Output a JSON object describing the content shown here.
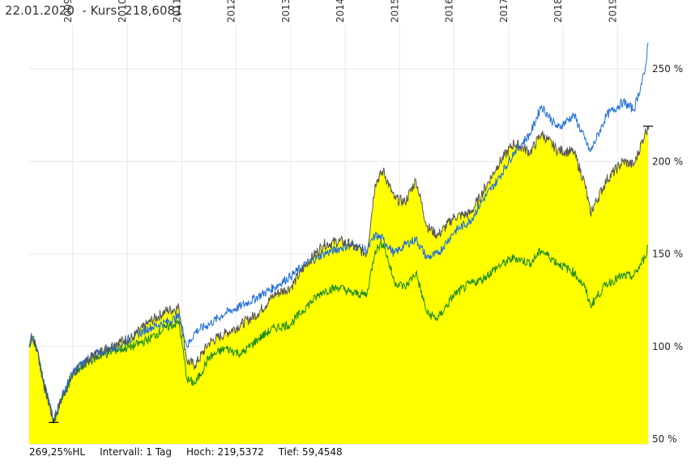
{
  "header": {
    "date": "22.01.2020",
    "kurs_label": "Kurs:",
    "kurs_value": "218,6081"
  },
  "footer": {
    "perf": "269,25%HL",
    "intervall": "Intervall: 1 Tag",
    "hoch": "Hoch: 219,5372",
    "tief": "Tief: 59,4548"
  },
  "colors": {
    "area": "#ffff00",
    "main_line": "#555555",
    "blue": "#1e6fd9",
    "green": "#1a8a1a",
    "grid": "#e8e8e8"
  },
  "chart_data": {
    "type": "line",
    "x_ticks": [
      "2009",
      "2010",
      "2011",
      "2012",
      "2013",
      "2014",
      "2015",
      "2016",
      "2017",
      "2018",
      "2019"
    ],
    "y_ticks": [
      "50 %",
      "100 %",
      "150 %",
      "200 %",
      "250 %"
    ],
    "ylim": [
      50,
      275
    ],
    "xlim": [
      2008.7,
      2020.06
    ],
    "grid": true,
    "series": [
      {
        "name": "",
        "role": "main-area",
        "points": [
          [
            2008.7,
            100
          ],
          [
            2008.75,
            106
          ],
          [
            2008.85,
            98
          ],
          [
            2008.95,
            82
          ],
          [
            2009.15,
            59
          ],
          [
            2009.3,
            72
          ],
          [
            2009.5,
            85
          ],
          [
            2009.75,
            92
          ],
          [
            2010.0,
            97
          ],
          [
            2010.3,
            102
          ],
          [
            2010.6,
            105
          ],
          [
            2010.9,
            113
          ],
          [
            2011.2,
            119
          ],
          [
            2011.45,
            121
          ],
          [
            2011.6,
            92
          ],
          [
            2011.75,
            90
          ],
          [
            2012.0,
            102
          ],
          [
            2012.3,
            107
          ],
          [
            2012.6,
            112
          ],
          [
            2012.9,
            118
          ],
          [
            2013.2,
            128
          ],
          [
            2013.5,
            132
          ],
          [
            2013.8,
            145
          ],
          [
            2014.1,
            155
          ],
          [
            2014.4,
            157
          ],
          [
            2014.6,
            155
          ],
          [
            2014.9,
            150
          ],
          [
            2015.05,
            188
          ],
          [
            2015.2,
            195
          ],
          [
            2015.4,
            180
          ],
          [
            2015.6,
            178
          ],
          [
            2015.8,
            190
          ],
          [
            2016.0,
            165
          ],
          [
            2016.2,
            160
          ],
          [
            2016.5,
            170
          ],
          [
            2016.8,
            172
          ],
          [
            2017.0,
            182
          ],
          [
            2017.3,
            198
          ],
          [
            2017.6,
            210
          ],
          [
            2017.9,
            205
          ],
          [
            2018.1,
            215
          ],
          [
            2018.4,
            206
          ],
          [
            2018.7,
            205
          ],
          [
            2018.9,
            188
          ],
          [
            2019.0,
            172
          ],
          [
            2019.3,
            190
          ],
          [
            2019.6,
            200
          ],
          [
            2019.8,
            198
          ],
          [
            2020.0,
            215
          ],
          [
            2020.06,
            219
          ]
        ]
      },
      {
        "name": "",
        "role": "blue-line",
        "points": [
          [
            2008.7,
            100
          ],
          [
            2008.75,
            106
          ],
          [
            2008.85,
            98
          ],
          [
            2008.95,
            82
          ],
          [
            2009.15,
            61
          ],
          [
            2009.3,
            73
          ],
          [
            2009.5,
            86
          ],
          [
            2009.75,
            93
          ],
          [
            2010.0,
            97
          ],
          [
            2010.3,
            100
          ],
          [
            2010.6,
            105
          ],
          [
            2010.9,
            110
          ],
          [
            2011.2,
            113
          ],
          [
            2011.45,
            116
          ],
          [
            2011.6,
            100
          ],
          [
            2011.75,
            108
          ],
          [
            2012.0,
            112
          ],
          [
            2012.3,
            118
          ],
          [
            2012.6,
            122
          ],
          [
            2012.9,
            127
          ],
          [
            2013.2,
            132
          ],
          [
            2013.5,
            138
          ],
          [
            2013.8,
            145
          ],
          [
            2014.1,
            150
          ],
          [
            2014.4,
            153
          ],
          [
            2014.6,
            155
          ],
          [
            2014.9,
            152
          ],
          [
            2015.05,
            160
          ],
          [
            2015.2,
            158
          ],
          [
            2015.4,
            150
          ],
          [
            2015.6,
            155
          ],
          [
            2015.8,
            158
          ],
          [
            2016.0,
            148
          ],
          [
            2016.2,
            150
          ],
          [
            2016.5,
            162
          ],
          [
            2016.8,
            168
          ],
          [
            2017.0,
            178
          ],
          [
            2017.3,
            190
          ],
          [
            2017.6,
            205
          ],
          [
            2017.9,
            215
          ],
          [
            2018.1,
            230
          ],
          [
            2018.4,
            218
          ],
          [
            2018.7,
            225
          ],
          [
            2018.9,
            212
          ],
          [
            2019.0,
            205
          ],
          [
            2019.3,
            225
          ],
          [
            2019.6,
            232
          ],
          [
            2019.8,
            228
          ],
          [
            2020.0,
            248
          ],
          [
            2020.06,
            264
          ]
        ]
      },
      {
        "name": "",
        "role": "green-line",
        "points": [
          [
            2008.7,
            100
          ],
          [
            2008.75,
            106
          ],
          [
            2008.85,
            98
          ],
          [
            2008.95,
            82
          ],
          [
            2009.15,
            60
          ],
          [
            2009.3,
            72
          ],
          [
            2009.5,
            84
          ],
          [
            2009.75,
            91
          ],
          [
            2010.0,
            95
          ],
          [
            2010.3,
            98
          ],
          [
            2010.6,
            100
          ],
          [
            2010.9,
            104
          ],
          [
            2011.2,
            110
          ],
          [
            2011.45,
            113
          ],
          [
            2011.6,
            82
          ],
          [
            2011.75,
            80
          ],
          [
            2012.0,
            94
          ],
          [
            2012.3,
            99
          ],
          [
            2012.6,
            96
          ],
          [
            2012.9,
            104
          ],
          [
            2013.2,
            110
          ],
          [
            2013.5,
            112
          ],
          [
            2013.8,
            122
          ],
          [
            2014.1,
            130
          ],
          [
            2014.4,
            132
          ],
          [
            2014.6,
            129
          ],
          [
            2014.9,
            128
          ],
          [
            2015.05,
            152
          ],
          [
            2015.2,
            156
          ],
          [
            2015.4,
            135
          ],
          [
            2015.6,
            132
          ],
          [
            2015.8,
            140
          ],
          [
            2016.0,
            118
          ],
          [
            2016.2,
            115
          ],
          [
            2016.5,
            128
          ],
          [
            2016.8,
            134
          ],
          [
            2017.0,
            136
          ],
          [
            2017.3,
            143
          ],
          [
            2017.6,
            148
          ],
          [
            2017.9,
            145
          ],
          [
            2018.1,
            152
          ],
          [
            2018.4,
            145
          ],
          [
            2018.7,
            140
          ],
          [
            2018.9,
            132
          ],
          [
            2019.0,
            122
          ],
          [
            2019.3,
            134
          ],
          [
            2019.6,
            138
          ],
          [
            2019.8,
            138
          ],
          [
            2020.0,
            148
          ],
          [
            2020.06,
            154
          ]
        ]
      }
    ]
  }
}
